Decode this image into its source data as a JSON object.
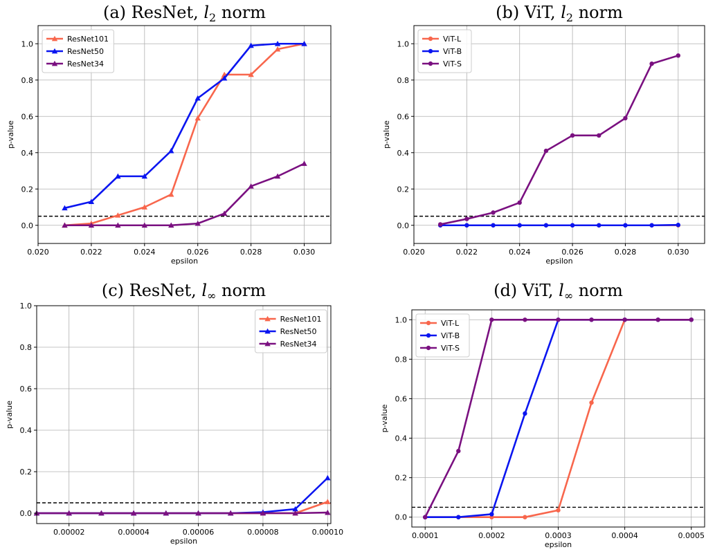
{
  "colors": {
    "ResNet101": "#f8664c",
    "ResNet50": "#0a15f0",
    "ResNet34": "#7a1080",
    "ViT-L": "#f8664c",
    "ViT-B": "#0a15f0",
    "ViT-S": "#7a1080",
    "threshold": "#000000",
    "grid": "#b0b0b0"
  },
  "chart_data": [
    {
      "type": "line",
      "title_prefix": "(a) ResNet, ",
      "title_var": "l",
      "title_sub": "2",
      "title_suffix": " norm",
      "xlabel": "epsilon",
      "ylabel": "p-value",
      "xlim": [
        0.02,
        0.031
      ],
      "ylim": [
        -0.1,
        1.1
      ],
      "xticks": [
        0.02,
        0.022,
        0.024,
        0.026,
        0.028,
        0.03
      ],
      "xtick_labels": [
        "0.020",
        "0.022",
        "0.024",
        "0.026",
        "0.028",
        "0.030"
      ],
      "yticks": [
        0.0,
        0.2,
        0.4,
        0.6,
        0.8,
        1.0
      ],
      "ytick_labels": [
        "0.0",
        "0.2",
        "0.4",
        "0.6",
        "0.8",
        "1.0"
      ],
      "grid": true,
      "legend_position": "top-left",
      "marker": "triangle",
      "threshold": 0.05,
      "x": [
        0.021,
        0.022,
        0.023,
        0.024,
        0.025,
        0.026,
        0.027,
        0.028,
        0.029,
        0.03
      ],
      "series": [
        {
          "name": "ResNet101",
          "values": [
            0.0,
            0.01,
            0.055,
            0.1,
            0.17,
            0.59,
            0.83,
            0.83,
            0.97,
            1.0
          ]
        },
        {
          "name": "ResNet50",
          "values": [
            0.095,
            0.13,
            0.27,
            0.27,
            0.41,
            0.7,
            0.81,
            0.99,
            1.0,
            1.0
          ]
        },
        {
          "name": "ResNet34",
          "values": [
            0.0,
            0.0,
            0.0,
            0.0,
            0.0,
            0.01,
            0.065,
            0.215,
            0.27,
            0.34
          ]
        }
      ]
    },
    {
      "type": "line",
      "title_prefix": "(b) ViT, ",
      "title_var": "l",
      "title_sub": "2",
      "title_suffix": " norm",
      "xlabel": "epsilon",
      "ylabel": "p-value",
      "xlim": [
        0.02,
        0.031
      ],
      "ylim": [
        -0.1,
        1.1
      ],
      "xticks": [
        0.02,
        0.022,
        0.024,
        0.026,
        0.028,
        0.03
      ],
      "xtick_labels": [
        "0.020",
        "0.022",
        "0.024",
        "0.026",
        "0.028",
        "0.030"
      ],
      "yticks": [
        0.0,
        0.2,
        0.4,
        0.6,
        0.8,
        1.0
      ],
      "ytick_labels": [
        "0.0",
        "0.2",
        "0.4",
        "0.6",
        "0.8",
        "1.0"
      ],
      "grid": true,
      "legend_position": "top-left",
      "marker": "circle",
      "threshold": 0.05,
      "x": [
        0.021,
        0.022,
        0.023,
        0.024,
        0.025,
        0.026,
        0.027,
        0.028,
        0.029,
        0.03
      ],
      "series": [
        {
          "name": "ViT-L",
          "values": [
            0.0,
            0.0,
            0.0,
            0.0,
            0.0,
            0.0,
            0.0,
            0.0,
            0.0,
            0.0
          ]
        },
        {
          "name": "ViT-B",
          "values": [
            0.0,
            0.0,
            0.0,
            0.0,
            0.0,
            0.0,
            0.0,
            0.0,
            0.0,
            0.002
          ]
        },
        {
          "name": "ViT-S",
          "values": [
            0.005,
            0.035,
            0.07,
            0.125,
            0.41,
            0.495,
            0.495,
            0.59,
            0.89,
            0.935
          ]
        }
      ]
    },
    {
      "type": "line",
      "title_prefix": "(c) ResNet, ",
      "title_var": "l",
      "title_sub": "∞",
      "title_suffix": " norm",
      "xlabel": "epsilon",
      "ylabel": "p-value",
      "xlim": [
        1e-05,
        0.000101
      ],
      "ylim": [
        -0.05,
        1.0
      ],
      "xticks": [
        2e-05,
        4e-05,
        6e-05,
        8e-05,
        0.0001
      ],
      "xtick_labels": [
        "0.00002",
        "0.00004",
        "0.00006",
        "0.00008",
        "0.00010"
      ],
      "yticks": [
        0.0,
        0.2,
        0.4,
        0.6,
        0.8,
        1.0
      ],
      "ytick_labels": [
        "0.0",
        "0.2",
        "0.4",
        "0.6",
        "0.8",
        "1.0"
      ],
      "grid": true,
      "legend_position": "top-right",
      "marker": "triangle",
      "threshold": 0.05,
      "x": [
        1e-05,
        2e-05,
        3e-05,
        4e-05,
        5e-05,
        6e-05,
        7e-05,
        8e-05,
        9e-05,
        0.0001
      ],
      "series": [
        {
          "name": "ResNet101",
          "values": [
            0.0,
            0.0,
            0.0,
            0.0,
            0.0,
            0.0,
            0.0,
            0.0,
            0.0,
            0.055
          ]
        },
        {
          "name": "ResNet50",
          "values": [
            0.0,
            0.0,
            0.0,
            0.0,
            0.0,
            0.0,
            0.0,
            0.005,
            0.02,
            0.17
          ]
        },
        {
          "name": "ResNet34",
          "values": [
            0.0,
            0.0,
            0.0,
            0.0,
            0.0,
            0.0,
            0.0,
            0.0,
            0.0,
            0.003
          ]
        }
      ]
    },
    {
      "type": "line",
      "title_prefix": "(d) ViT, ",
      "title_var": "l",
      "title_sub": "∞",
      "title_suffix": " norm",
      "xlabel": "epsilon",
      "ylabel": "p-value",
      "xlim": [
        8e-05,
        0.00052
      ],
      "ylim": [
        -0.05,
        1.05
      ],
      "xticks": [
        0.0001,
        0.0002,
        0.0003,
        0.0004,
        0.0005
      ],
      "xtick_labels": [
        "0.0001",
        "0.0002",
        "0.0003",
        "0.0004",
        "0.0005"
      ],
      "yticks": [
        0.0,
        0.2,
        0.4,
        0.6,
        0.8,
        1.0
      ],
      "ytick_labels": [
        "0.0",
        "0.2",
        "0.4",
        "0.6",
        "0.8",
        "1.0"
      ],
      "grid": true,
      "legend_position": "top-left",
      "marker": "circle",
      "threshold": 0.05,
      "x": [
        0.0001,
        0.00015,
        0.0002,
        0.00025,
        0.0003,
        0.00035,
        0.0004,
        0.00045,
        0.0005
      ],
      "series": [
        {
          "name": "ViT-L",
          "values": [
            0.0,
            0.0,
            0.0,
            0.0,
            0.035,
            0.58,
            1.0,
            1.0,
            1.0
          ]
        },
        {
          "name": "ViT-B",
          "values": [
            0.0,
            0.0,
            0.015,
            0.525,
            1.0,
            1.0,
            1.0,
            1.0,
            1.0
          ]
        },
        {
          "name": "ViT-S",
          "values": [
            0.0,
            0.335,
            1.0,
            1.0,
            1.0,
            1.0,
            1.0,
            1.0,
            1.0
          ]
        }
      ]
    }
  ]
}
